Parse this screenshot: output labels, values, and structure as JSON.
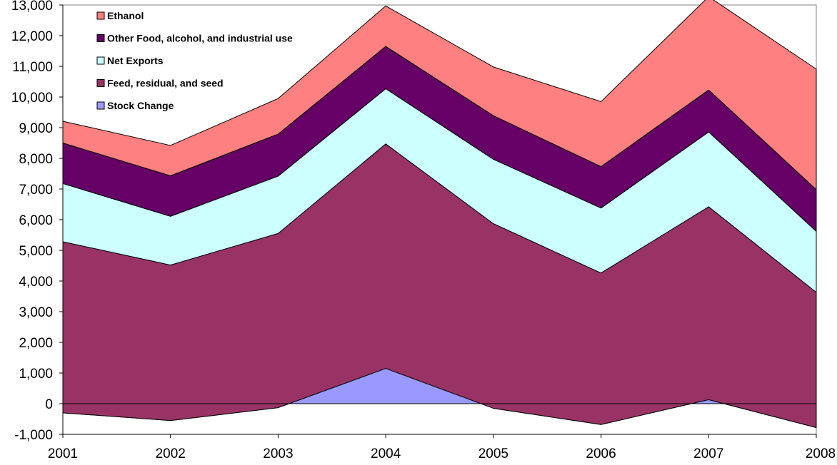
{
  "chart_data": {
    "type": "area",
    "stacking": "stacked",
    "x": [
      "2001",
      "2002",
      "2003",
      "2004",
      "2005",
      "2006",
      "2007",
      "2008"
    ],
    "ylim": [
      -1000,
      13000
    ],
    "ytick_step": 1000,
    "ytick_labels": [
      "-1,000",
      "0",
      "1,000",
      "2,000",
      "3,000",
      "4,000",
      "5,000",
      "6,000",
      "7,000",
      "8,000",
      "9,000",
      "10,000",
      "11,000",
      "12,000",
      "13,000"
    ],
    "grid": false,
    "legend_position": "top-left",
    "title": "",
    "xlabel": "",
    "ylabel": "",
    "series": [
      {
        "name": "Stock Change",
        "color": "#9999ff",
        "values": [
          -300,
          -550,
          -130,
          1150,
          -150,
          -680,
          130,
          -780
        ]
      },
      {
        "name": "Feed, residual, and seed",
        "color": "#993366",
        "values": [
          5580,
          5070,
          5680,
          7320,
          6020,
          4940,
          6290,
          4410
        ]
      },
      {
        "name": "Net Exports",
        "color": "#ccffff",
        "values": [
          1900,
          1590,
          1870,
          1800,
          2100,
          2120,
          2440,
          1990
        ]
      },
      {
        "name": "Other Food, alcohol, and industrial use",
        "color": "#660066",
        "values": [
          1320,
          1320,
          1370,
          1380,
          1420,
          1350,
          1370,
          1360
        ]
      },
      {
        "name": "Ethanol",
        "color": "#ff8080",
        "values": [
          710,
          990,
          1160,
          1320,
          1590,
          2120,
          3040,
          3930
        ]
      }
    ]
  }
}
